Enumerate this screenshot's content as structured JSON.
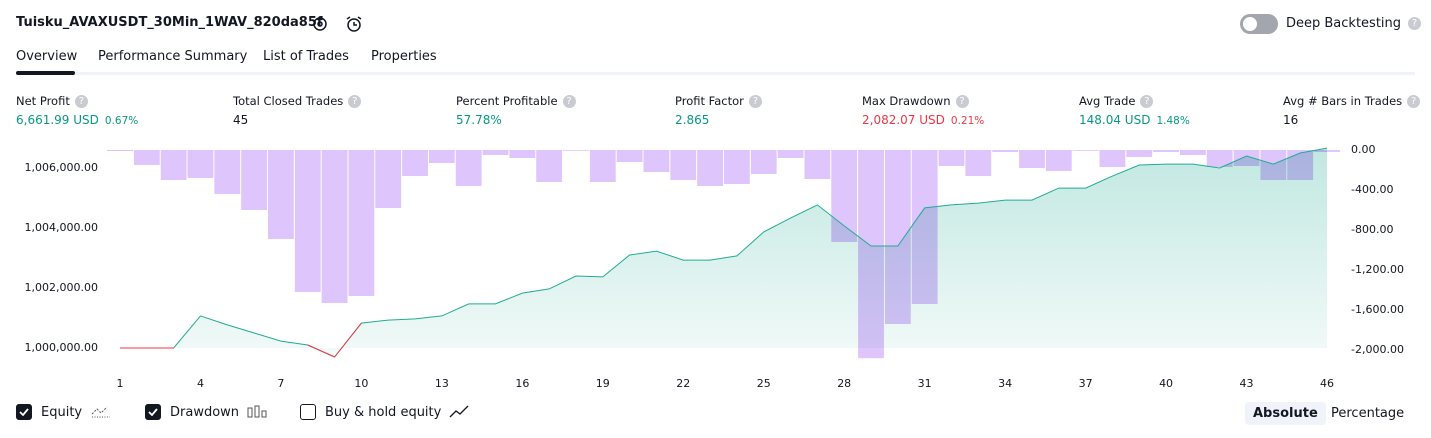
{
  "header": {
    "title": "Tuisku_AVAXUSDT_30Min_1WAV_820da85f",
    "deep_backtesting": "Deep Backtesting"
  },
  "tabs": [
    "Overview",
    "Performance Summary",
    "List of Trades",
    "Properties"
  ],
  "active_tab": 0,
  "metrics": [
    {
      "label": "Net Profit",
      "value": "6,661.99 USD",
      "change": "0.67%",
      "color": "#089981"
    },
    {
      "label": "Total Closed Trades",
      "value": "45",
      "color": "#131722"
    },
    {
      "label": "Percent Profitable",
      "value": "57.78%",
      "color": "#089981"
    },
    {
      "label": "Profit Factor",
      "value": "2.865",
      "color": "#089981"
    },
    {
      "label": "Max Drawdown",
      "value": "2,082.07 USD",
      "change": "0.21%",
      "color": "#f23645"
    },
    {
      "label": "Avg Trade",
      "value": "148.04 USD",
      "change": "1.48%",
      "color": "#089981"
    },
    {
      "label": "Avg # Bars in Trades",
      "value": "16",
      "color": "#131722"
    }
  ],
  "chart_data": {
    "type": "equity_drawdown",
    "x": [
      1,
      2,
      3,
      4,
      5,
      6,
      7,
      8,
      9,
      10,
      11,
      12,
      13,
      14,
      15,
      16,
      17,
      18,
      19,
      20,
      21,
      22,
      23,
      24,
      25,
      26,
      27,
      28,
      29,
      30,
      31,
      32,
      33,
      34,
      35,
      36,
      37,
      38,
      39,
      40,
      41,
      42,
      43,
      44,
      45,
      46
    ],
    "xlim": [
      1,
      46
    ],
    "xticks": [
      1,
      4,
      7,
      10,
      13,
      16,
      19,
      22,
      25,
      28,
      31,
      34,
      37,
      40,
      43,
      46
    ],
    "series": [
      {
        "name": "Equity",
        "color": "#22ab94",
        "visible": true,
        "values": [
          1000000,
          1000000,
          1000000,
          1001070,
          1000770,
          1000500,
          1000230,
          1000100,
          999700,
          1000830,
          1000930,
          1000970,
          1001070,
          1001470,
          1001470,
          1001830,
          1001970,
          1002400,
          1002370,
          1003100,
          1003230,
          1002930,
          1002930,
          1003070,
          1003870,
          1004330,
          1004770,
          1004070,
          1003400,
          1003400,
          1004670,
          1004770,
          1004830,
          1004930,
          1004930,
          1005330,
          1005330,
          1005730,
          1006100,
          1006130,
          1006130,
          1006000,
          1006400,
          1006130,
          1006500,
          1006661.99
        ]
      },
      {
        "name": "Drawdown",
        "color": "#d7b8fa",
        "axis": "y2",
        "visible": true,
        "values": [
          -10,
          -150,
          -300,
          -280,
          -440,
          -600,
          -890,
          -1420,
          -1530,
          -1460,
          -580,
          -260,
          -130,
          -360,
          -50,
          -80,
          -320,
          0,
          -320,
          -120,
          -220,
          -300,
          -360,
          -340,
          -240,
          -80,
          -290,
          -920,
          -2082.07,
          -1740,
          -1540,
          -160,
          -260,
          -20,
          -180,
          -210,
          0,
          -170,
          -70,
          -20,
          -50,
          -170,
          -160,
          -300,
          -300,
          -20
        ]
      }
    ],
    "buy_hold": {
      "name": "Buy & hold equity",
      "visible": false
    },
    "loss_color": "#f23645",
    "ylim": [
      999600,
      1006600
    ],
    "yticks": [
      {
        "value": 1000000,
        "label": "1,000,000.00"
      },
      {
        "value": 1002000,
        "label": "1,002,000.00"
      },
      {
        "value": 1004000,
        "label": "1,004,000.00"
      },
      {
        "value": 1006000,
        "label": "1,006,000.00"
      }
    ],
    "y2lim": [
      -2100,
      0
    ],
    "y2ticks": [
      {
        "value": 0,
        "label": "0.00"
      },
      {
        "value": -400,
        "label": "-400.00"
      },
      {
        "value": -800,
        "label": "-800.00"
      },
      {
        "value": -1200,
        "label": "-1,200.00"
      },
      {
        "value": -1600,
        "label": "-1,600.00"
      },
      {
        "value": -2000,
        "label": "-2,000.00"
      }
    ],
    "grid": false
  },
  "scale_modes": [
    "Absolute",
    "Percentage"
  ],
  "active_scale": 0
}
